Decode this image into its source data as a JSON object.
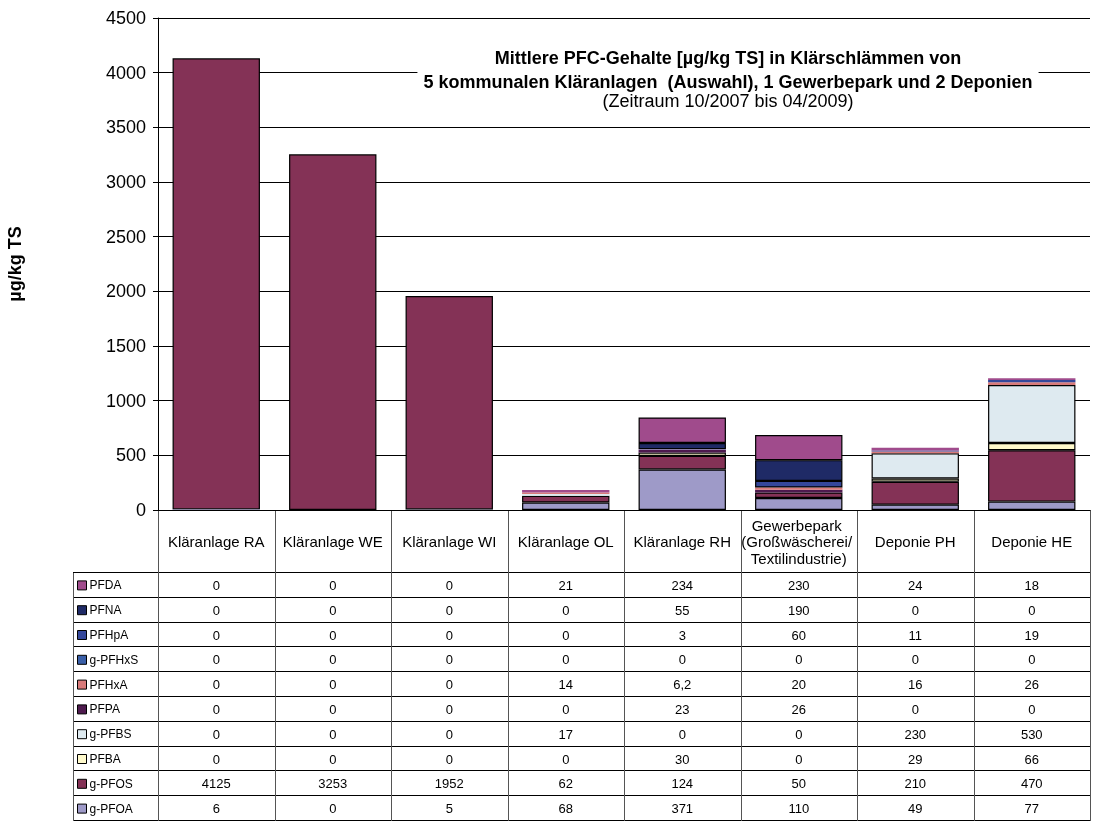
{
  "chart_data": {
    "type": "bar",
    "title": "Mittlere PFC-Gehalte [µg/kg TS] in Klärschlämmen von\n5 kommunalen Kläranlagen  (Auswahl), 1 Gewerbepark und 2 Deponien",
    "subtitle": "(Zeitraum 10/2007 bis 04/2009)",
    "ylabel": "µg/kg TS",
    "categories": [
      "Kläranlage RA",
      "Kläranlage WE",
      "Kläranlage WI",
      "Kläranlage OL",
      "Kläranlage RH",
      "Gewerbepark (Großwäscherei/ Textilindustrie)",
      "Deponie PH",
      "Deponie HE"
    ],
    "stacked": true,
    "ylim": [
      0,
      4500
    ],
    "yticks": [
      0,
      500,
      1000,
      1500,
      2000,
      2500,
      3000,
      3500,
      4000,
      4500
    ],
    "grid": "y",
    "legend": "bottom left",
    "series": [
      {
        "name": "g-PFOA",
        "color": "#9e9ac8",
        "values": [
          6,
          0,
          5,
          68,
          371,
          110,
          49,
          77
        ],
        "value_labels": [
          "6",
          "0",
          "5",
          "68",
          "371",
          "110",
          "49",
          "77"
        ]
      },
      {
        "name": "g-PFOS",
        "color": "#843256",
        "values": [
          4125,
          3253,
          1952,
          62,
          124,
          50,
          210,
          470
        ],
        "value_labels": [
          "4125",
          "3253",
          "1952",
          "62",
          "124",
          "50",
          "210",
          "470"
        ]
      },
      {
        "name": "PFBA",
        "color": "#fffacc",
        "values": [
          0,
          0,
          0,
          0,
          30,
          0,
          29,
          66
        ],
        "value_labels": [
          "0",
          "0",
          "0",
          "0",
          "30",
          "0",
          "29",
          "66"
        ]
      },
      {
        "name": "g-PFBS",
        "color": "#deeaf0",
        "values": [
          0,
          0,
          0,
          17,
          0,
          0,
          230,
          530
        ],
        "value_labels": [
          "0",
          "0",
          "0",
          "17",
          "0",
          "0",
          "230",
          "530"
        ]
      },
      {
        "name": "PFPA",
        "color": "#4e1a4e",
        "values": [
          0,
          0,
          0,
          0,
          23,
          26,
          0,
          0
        ],
        "value_labels": [
          "0",
          "0",
          "0",
          "0",
          "23",
          "26",
          "0",
          "0"
        ]
      },
      {
        "name": "PFHxA",
        "color": "#d97a7a",
        "values": [
          0,
          0,
          0,
          14,
          6.2,
          20,
          16,
          26
        ],
        "value_labels": [
          "0",
          "0",
          "0",
          "14",
          "6,2",
          "20",
          "16",
          "26"
        ]
      },
      {
        "name": "g-PFHxS",
        "color": "#3a5fa8",
        "values": [
          0,
          0,
          0,
          0,
          0,
          0,
          0,
          0
        ],
        "value_labels": [
          "0",
          "0",
          "0",
          "0",
          "0",
          "0",
          "0",
          "0"
        ]
      },
      {
        "name": "PFHpA",
        "color": "#34479a",
        "values": [
          0,
          0,
          0,
          0,
          3,
          60,
          11,
          19
        ],
        "value_labels": [
          "0",
          "0",
          "0",
          "0",
          "3",
          "60",
          "11",
          "19"
        ]
      },
      {
        "name": "PFNA",
        "color": "#1f2a66",
        "values": [
          0,
          0,
          0,
          0,
          55,
          190,
          0,
          0
        ],
        "value_labels": [
          "0",
          "0",
          "0",
          "0",
          "55",
          "190",
          "0",
          "0"
        ]
      },
      {
        "name": "PFDA",
        "color": "#a04b8c",
        "values": [
          0,
          0,
          0,
          21,
          234,
          230,
          24,
          18
        ],
        "value_labels": [
          "0",
          "0",
          "0",
          "21",
          "234",
          "230",
          "24",
          "18"
        ]
      }
    ]
  }
}
